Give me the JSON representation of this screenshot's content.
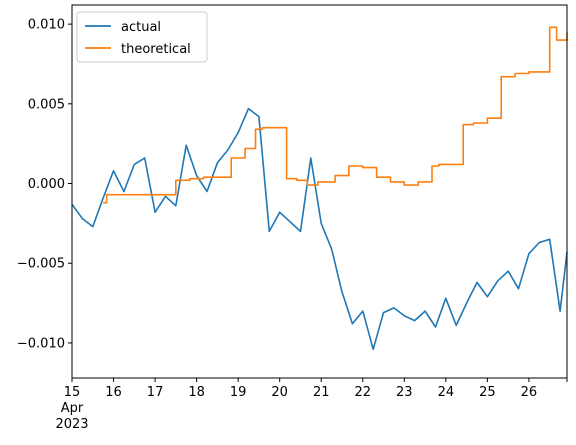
{
  "chart_data": {
    "type": "line",
    "title": "",
    "xlabel": "",
    "ylabel": "",
    "x_ticks": [
      "15",
      "16",
      "17",
      "18",
      "19",
      "20",
      "21",
      "22",
      "23",
      "24",
      "25",
      "26"
    ],
    "x_tick_sub": {
      "month": "Apr",
      "year": "2023"
    },
    "y_ticks": [
      "0.010",
      "0.005",
      "0.000",
      "−0.005",
      "−0.010"
    ],
    "y_tick_values": [
      0.01,
      0.005,
      0.0,
      -0.005,
      -0.01
    ],
    "xlim": [
      "2023-04-15 00:00",
      "2023-04-26 22:00"
    ],
    "ylim": [
      -0.0122,
      0.0112
    ],
    "grid": false,
    "legend_position": "upper left",
    "colors": {
      "actual": "#1f77b4",
      "theoretical": "#ff7f0e"
    },
    "series": [
      {
        "name": "actual",
        "x": [
          "2023-04-15 00:00",
          "2023-04-15 06:00",
          "2023-04-15 12:00",
          "2023-04-15 18:00",
          "2023-04-16 00:00",
          "2023-04-16 06:00",
          "2023-04-16 12:00",
          "2023-04-16 18:00",
          "2023-04-17 00:00",
          "2023-04-17 06:00",
          "2023-04-17 12:00",
          "2023-04-17 18:00",
          "2023-04-18 00:00",
          "2023-04-18 06:00",
          "2023-04-18 12:00",
          "2023-04-18 18:00",
          "2023-04-19 00:00",
          "2023-04-19 06:00",
          "2023-04-19 12:00",
          "2023-04-19 18:00",
          "2023-04-20 00:00",
          "2023-04-20 06:00",
          "2023-04-20 12:00",
          "2023-04-20 18:00",
          "2023-04-21 00:00",
          "2023-04-21 06:00",
          "2023-04-21 12:00",
          "2023-04-21 18:00",
          "2023-04-22 00:00",
          "2023-04-22 06:00",
          "2023-04-22 12:00",
          "2023-04-22 18:00",
          "2023-04-23 00:00",
          "2023-04-23 06:00",
          "2023-04-23 12:00",
          "2023-04-23 18:00",
          "2023-04-24 00:00",
          "2023-04-24 06:00",
          "2023-04-24 12:00",
          "2023-04-24 18:00",
          "2023-04-25 00:00",
          "2023-04-25 06:00",
          "2023-04-25 12:00",
          "2023-04-25 18:00",
          "2023-04-26 00:00",
          "2023-04-26 06:00",
          "2023-04-26 12:00",
          "2023-04-26 18:00",
          "2023-04-26 22:00"
        ],
        "values": [
          -0.0013,
          -0.0022,
          -0.0027,
          -0.0009,
          0.0008,
          -0.0005,
          0.0012,
          0.0016,
          -0.0018,
          -0.0008,
          -0.0014,
          0.0024,
          0.0005,
          -0.0005,
          0.0013,
          0.0021,
          0.0032,
          0.0047,
          0.0042,
          -0.003,
          -0.0018,
          -0.0024,
          -0.003,
          0.0016,
          -0.0025,
          -0.0041,
          -0.0068,
          -0.0088,
          -0.008,
          -0.0104,
          -0.0081,
          -0.0078,
          -0.0083,
          -0.0086,
          -0.008,
          -0.009,
          -0.0072,
          -0.0089,
          -0.0075,
          -0.0062,
          -0.0071,
          -0.0061,
          -0.0055,
          -0.0066,
          -0.0044,
          -0.0037,
          -0.0035,
          -0.008,
          -0.0043
        ]
      },
      {
        "name": "theoretical",
        "x": [
          "2023-04-15 18:00",
          "2023-04-15 20:00",
          "2023-04-16 12:00",
          "2023-04-16 20:00",
          "2023-04-17 12:00",
          "2023-04-17 20:00",
          "2023-04-18 04:00",
          "2023-04-18 20:00",
          "2023-04-19 04:00",
          "2023-04-19 10:00",
          "2023-04-19 14:00",
          "2023-04-19 22:00",
          "2023-04-20 04:00",
          "2023-04-20 10:00",
          "2023-04-20 16:00",
          "2023-04-20 22:00",
          "2023-04-21 08:00",
          "2023-04-21 16:00",
          "2023-04-22 00:00",
          "2023-04-22 08:00",
          "2023-04-22 16:00",
          "2023-04-23 00:00",
          "2023-04-23 08:00",
          "2023-04-23 16:00",
          "2023-04-23 20:00",
          "2023-04-24 00:00",
          "2023-04-24 10:00",
          "2023-04-24 16:00",
          "2023-04-25 00:00",
          "2023-04-25 08:00",
          "2023-04-25 16:00",
          "2023-04-26 00:00",
          "2023-04-26 12:00",
          "2023-04-26 16:00",
          "2023-04-26 22:00"
        ],
        "values": [
          -0.0012,
          -0.0007,
          -0.0007,
          -0.0007,
          0.0002,
          0.0003,
          0.0004,
          0.0016,
          0.0022,
          0.0034,
          0.0035,
          0.0035,
          0.0003,
          0.0002,
          -0.0001,
          0.0001,
          0.0005,
          0.0011,
          0.001,
          0.0004,
          0.0001,
          -0.0001,
          0.0001,
          0.0011,
          0.0012,
          0.0012,
          0.0037,
          0.0038,
          0.0041,
          0.0067,
          0.0069,
          0.007,
          0.0098,
          0.009,
          0.0095
        ]
      }
    ]
  }
}
